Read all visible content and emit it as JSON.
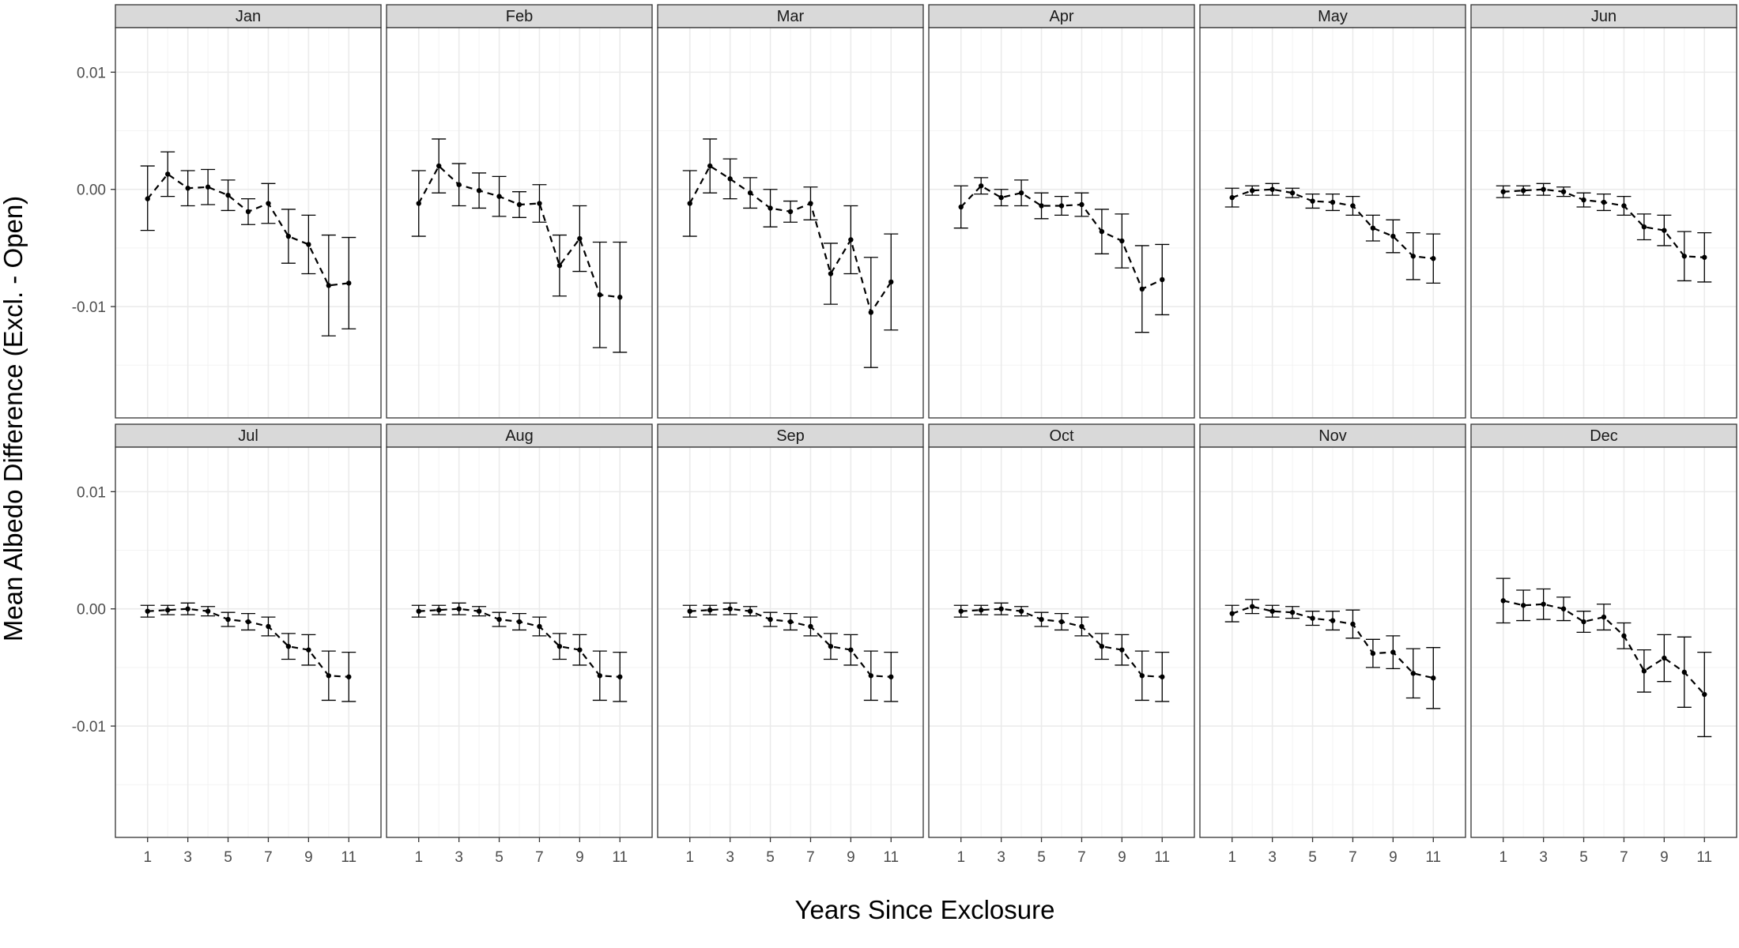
{
  "chart_data": {
    "type": "line",
    "facet_by": "month",
    "xlabel": "Years Since Exclosure",
    "ylabel": "Mean Albedo Difference (Excl. - Open)",
    "x": [
      1,
      2,
      3,
      4,
      5,
      6,
      7,
      8,
      9,
      10,
      11
    ],
    "x_tick_labels": [
      "1",
      "3",
      "5",
      "7",
      "9",
      "11"
    ],
    "x_tick_values": [
      1,
      3,
      5,
      7,
      9,
      11
    ],
    "xlim": [
      -0.6,
      12.6
    ],
    "y_tick_values": [
      0.01,
      0.0,
      -0.01
    ],
    "y_tick_labels": [
      "0.01",
      "0.00",
      "-0.01"
    ],
    "ylim": [
      -0.0195,
      0.0138
    ],
    "grid": true,
    "line_style": "dashed",
    "error_bars": true,
    "colors": {
      "strip_fill": "#d9d9d9",
      "panel_border": "#333333",
      "grid": "#ebebeb",
      "series": "#000000"
    },
    "panels": [
      {
        "month": "Jan",
        "y": [
          -0.0008,
          0.0013,
          0.0001,
          0.0002,
          -0.0005,
          -0.0019,
          -0.0012,
          -0.004,
          -0.0047,
          -0.0082,
          -0.008
        ],
        "lo": [
          -0.0035,
          -0.0006,
          -0.0014,
          -0.0013,
          -0.0018,
          -0.003,
          -0.0029,
          -0.0063,
          -0.0072,
          -0.0125,
          -0.0119
        ],
        "hi": [
          0.002,
          0.0032,
          0.0016,
          0.0017,
          0.0008,
          -0.0008,
          0.0005,
          -0.0017,
          -0.0022,
          -0.0039,
          -0.0041
        ]
      },
      {
        "month": "Feb",
        "y": [
          -0.0012,
          0.002,
          0.0004,
          -0.0001,
          -0.0006,
          -0.0013,
          -0.0012,
          -0.0065,
          -0.0042,
          -0.009,
          -0.0092
        ],
        "lo": [
          -0.004,
          -0.0003,
          -0.0014,
          -0.0016,
          -0.0023,
          -0.0024,
          -0.0028,
          -0.0091,
          -0.007,
          -0.0135,
          -0.0139
        ],
        "hi": [
          0.0016,
          0.0043,
          0.0022,
          0.0014,
          0.0011,
          -0.0002,
          0.0004,
          -0.0039,
          -0.0014,
          -0.0045,
          -0.0045
        ]
      },
      {
        "month": "Mar",
        "y": [
          -0.0012,
          0.002,
          0.0009,
          -0.0003,
          -0.0016,
          -0.0019,
          -0.0012,
          -0.0072,
          -0.0043,
          -0.0105,
          -0.0079
        ],
        "lo": [
          -0.004,
          -0.0003,
          -0.0008,
          -0.0016,
          -0.0032,
          -0.0028,
          -0.0026,
          -0.0098,
          -0.0072,
          -0.0152,
          -0.012
        ],
        "hi": [
          0.0016,
          0.0043,
          0.0026,
          0.001,
          0.0,
          -0.001,
          0.0002,
          -0.0046,
          -0.0014,
          -0.0058,
          -0.0038
        ]
      },
      {
        "month": "Apr",
        "y": [
          -0.0015,
          0.0003,
          -0.0007,
          -0.0003,
          -0.0014,
          -0.0014,
          -0.0013,
          -0.0036,
          -0.0044,
          -0.0085,
          -0.0077
        ],
        "lo": [
          -0.0033,
          -0.0004,
          -0.0014,
          -0.0014,
          -0.0025,
          -0.0022,
          -0.0023,
          -0.0055,
          -0.0067,
          -0.0122,
          -0.0107
        ],
        "hi": [
          0.0003,
          0.001,
          0.0,
          0.0008,
          -0.0003,
          -0.0006,
          -0.0003,
          -0.0017,
          -0.0021,
          -0.0048,
          -0.0047
        ]
      },
      {
        "month": "May",
        "y": [
          -0.0007,
          -0.0001,
          0.0,
          -0.0003,
          -0.001,
          -0.0011,
          -0.0014,
          -0.0033,
          -0.004,
          -0.0057,
          -0.0059
        ],
        "lo": [
          -0.0015,
          -0.0005,
          -0.0005,
          -0.0007,
          -0.0016,
          -0.0018,
          -0.0022,
          -0.0044,
          -0.0054,
          -0.0077,
          -0.008
        ],
        "hi": [
          0.0001,
          0.0003,
          0.0005,
          0.0001,
          -0.0004,
          -0.0004,
          -0.0006,
          -0.0022,
          -0.0026,
          -0.0037,
          -0.0038
        ]
      },
      {
        "month": "Jun",
        "y": [
          -0.0002,
          -0.0001,
          0.0,
          -0.0002,
          -0.0009,
          -0.0011,
          -0.0014,
          -0.0032,
          -0.0035,
          -0.0057,
          -0.0058
        ],
        "lo": [
          -0.0007,
          -0.0005,
          -0.0005,
          -0.0006,
          -0.0015,
          -0.0018,
          -0.0022,
          -0.0043,
          -0.0048,
          -0.0078,
          -0.0079
        ],
        "hi": [
          0.0003,
          0.0003,
          0.0005,
          0.0002,
          -0.0003,
          -0.0004,
          -0.0006,
          -0.0021,
          -0.0022,
          -0.0036,
          -0.0037
        ]
      },
      {
        "month": "Jul",
        "y": [
          -0.0002,
          -0.0001,
          0.0,
          -0.0002,
          -0.0009,
          -0.0011,
          -0.0015,
          -0.0032,
          -0.0035,
          -0.0057,
          -0.0058
        ],
        "lo": [
          -0.0007,
          -0.0005,
          -0.0005,
          -0.0006,
          -0.0015,
          -0.0018,
          -0.0023,
          -0.0043,
          -0.0048,
          -0.0078,
          -0.0079
        ],
        "hi": [
          0.0003,
          0.0003,
          0.0005,
          0.0002,
          -0.0003,
          -0.0004,
          -0.0007,
          -0.0021,
          -0.0022,
          -0.0036,
          -0.0037
        ]
      },
      {
        "month": "Aug",
        "y": [
          -0.0002,
          -0.0001,
          0.0,
          -0.0002,
          -0.0009,
          -0.0011,
          -0.0015,
          -0.0032,
          -0.0035,
          -0.0057,
          -0.0058
        ],
        "lo": [
          -0.0007,
          -0.0005,
          -0.0005,
          -0.0006,
          -0.0015,
          -0.0018,
          -0.0023,
          -0.0043,
          -0.0048,
          -0.0078,
          -0.0079
        ],
        "hi": [
          0.0003,
          0.0003,
          0.0005,
          0.0002,
          -0.0003,
          -0.0004,
          -0.0007,
          -0.0021,
          -0.0022,
          -0.0036,
          -0.0037
        ]
      },
      {
        "month": "Sep",
        "y": [
          -0.0002,
          -0.0001,
          0.0,
          -0.0002,
          -0.0009,
          -0.0011,
          -0.0015,
          -0.0032,
          -0.0035,
          -0.0057,
          -0.0058
        ],
        "lo": [
          -0.0007,
          -0.0005,
          -0.0005,
          -0.0006,
          -0.0015,
          -0.0018,
          -0.0023,
          -0.0043,
          -0.0048,
          -0.0078,
          -0.0079
        ],
        "hi": [
          0.0003,
          0.0003,
          0.0005,
          0.0002,
          -0.0003,
          -0.0004,
          -0.0007,
          -0.0021,
          -0.0022,
          -0.0036,
          -0.0037
        ]
      },
      {
        "month": "Oct",
        "y": [
          -0.0002,
          -0.0001,
          0.0,
          -0.0002,
          -0.0009,
          -0.0011,
          -0.0015,
          -0.0032,
          -0.0035,
          -0.0057,
          -0.0058
        ],
        "lo": [
          -0.0007,
          -0.0005,
          -0.0005,
          -0.0006,
          -0.0015,
          -0.0018,
          -0.0023,
          -0.0043,
          -0.0048,
          -0.0078,
          -0.0079
        ],
        "hi": [
          0.0003,
          0.0003,
          0.0005,
          0.0002,
          -0.0003,
          -0.0004,
          -0.0007,
          -0.0021,
          -0.0022,
          -0.0036,
          -0.0037
        ]
      },
      {
        "month": "Nov",
        "y": [
          -0.0004,
          0.0002,
          -0.0002,
          -0.0003,
          -0.0008,
          -0.001,
          -0.0013,
          -0.0038,
          -0.0037,
          -0.0055,
          -0.0059
        ],
        "lo": [
          -0.0011,
          -0.0004,
          -0.0007,
          -0.0008,
          -0.0014,
          -0.0018,
          -0.0025,
          -0.005,
          -0.0051,
          -0.0076,
          -0.0085
        ],
        "hi": [
          0.0003,
          0.0008,
          0.0003,
          0.0002,
          -0.0002,
          -0.0002,
          -0.0001,
          -0.0026,
          -0.0023,
          -0.0034,
          -0.0033
        ]
      },
      {
        "month": "Dec",
        "y": [
          0.0007,
          0.0003,
          0.0004,
          0.0,
          -0.0011,
          -0.0007,
          -0.0023,
          -0.0053,
          -0.0042,
          -0.0054,
          -0.0073
        ],
        "lo": [
          -0.0012,
          -0.001,
          -0.0009,
          -0.001,
          -0.002,
          -0.0018,
          -0.0034,
          -0.0071,
          -0.0062,
          -0.0084,
          -0.0109
        ],
        "hi": [
          0.0026,
          0.0016,
          0.0017,
          0.001,
          -0.0002,
          0.0004,
          -0.0012,
          -0.0035,
          -0.0022,
          -0.0024,
          -0.0037
        ]
      }
    ]
  }
}
